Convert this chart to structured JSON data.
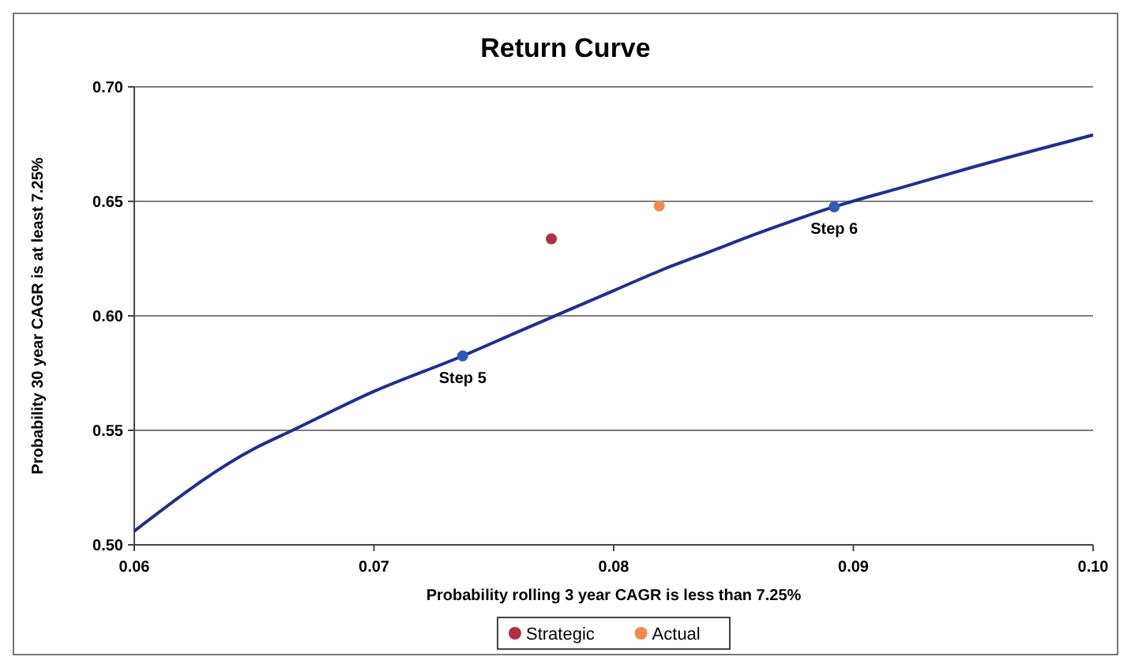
{
  "chart_data": {
    "type": "line",
    "title": "Return Curve",
    "xlabel": "Probability rolling 3 year CAGR is less than 7.25%",
    "ylabel": "Probability 30 year CAGR is at least 7.25%",
    "xlim": [
      0.06,
      0.1
    ],
    "xticks": [
      {
        "value": 0.06,
        "label": "0.06"
      },
      {
        "value": 0.07,
        "label": "0.07"
      },
      {
        "value": 0.08,
        "label": "0.08"
      },
      {
        "value": 0.09,
        "label": "0.09"
      },
      {
        "value": 0.1,
        "label": "0.10"
      }
    ],
    "ylim": [
      0.5,
      0.7
    ],
    "yticks": [
      {
        "value": 0.5,
        "label": "0.50"
      },
      {
        "value": 0.55,
        "label": "0.55"
      },
      {
        "value": 0.6,
        "label": "0.60"
      },
      {
        "value": 0.65,
        "label": "0.65"
      },
      {
        "value": 0.7,
        "label": "0.70"
      }
    ],
    "grid": "y",
    "legend": "bottom",
    "series": [
      {
        "type": "line",
        "color": "#1f2f8f",
        "marker": "none",
        "x": [
          0.06,
          0.065,
          0.0666,
          0.07,
          0.0737,
          0.076,
          0.078,
          0.08,
          0.082,
          0.084,
          0.086,
          0.0892,
          0.092,
          0.095,
          0.1
        ],
        "values": [
          0.506,
          0.542,
          0.55,
          0.567,
          0.5825,
          0.593,
          0.602,
          0.611,
          0.62,
          0.628,
          0.636,
          0.6476,
          0.656,
          0.665,
          0.679
        ]
      },
      {
        "type": "scatter",
        "color": "#2e5cb8",
        "marker": "circle",
        "x": [
          0.0737,
          0.0892
        ],
        "values": [
          0.5825,
          0.6476
        ]
      },
      {
        "type": "scatter",
        "name": "Strategic",
        "color": "#b0303f",
        "marker": "circle",
        "x": [
          0.0774
        ],
        "values": [
          0.6336
        ]
      },
      {
        "type": "scatter",
        "name": "Actual",
        "color": "#f08a4b",
        "marker": "circle",
        "x": [
          0.0819
        ],
        "values": [
          0.648
        ]
      }
    ],
    "annotations": [
      {
        "text": "Step 5",
        "x": 0.0737,
        "y": 0.5825
      },
      {
        "text": "Step 6",
        "x": 0.0892,
        "y": 0.6476
      }
    ]
  }
}
